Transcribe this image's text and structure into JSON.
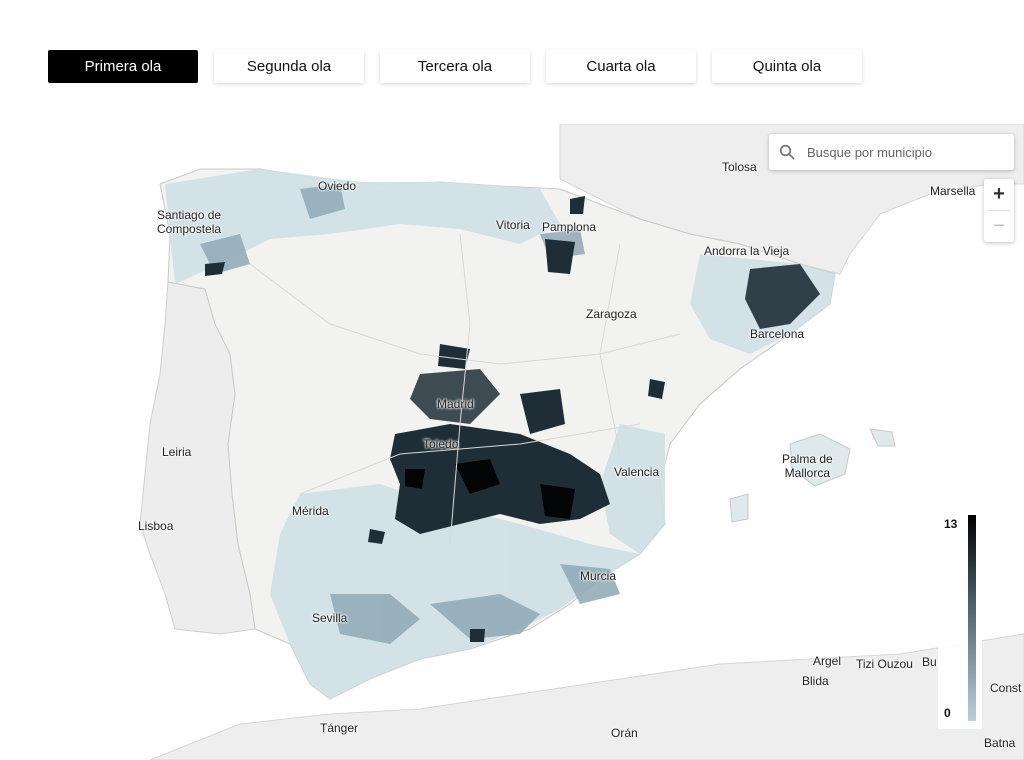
{
  "tabs": [
    {
      "label": "Primera ola",
      "active": true
    },
    {
      "label": "Segunda ola",
      "active": false
    },
    {
      "label": "Tercera ola",
      "active": false
    },
    {
      "label": "Cuarta ola",
      "active": false
    },
    {
      "label": "Quinta ola",
      "active": false
    }
  ],
  "search": {
    "placeholder": "Busque por municipio"
  },
  "zoom": {
    "in_label": "+",
    "out_label": "−"
  },
  "legend": {
    "max": "13",
    "min": "0",
    "color_high": "#000000",
    "color_low": "#b7d1da"
  },
  "places": {
    "oviedo": "Oviedo",
    "santiago": "Santiago de\nCompostela",
    "vitoria": "Vitoria",
    "pamplona": "Pamplona",
    "tolosa": "Tolosa",
    "marsella": "Marsella",
    "andorra": "Andorra la Vieja",
    "zaragoza": "Zaragoza",
    "barcelona": "Barcelona",
    "madrid": "Madrid",
    "toledo": "Toledo",
    "leiria": "Leiria",
    "valencia": "Valencia",
    "palma": "Palma de\nMallorca",
    "lisboa": "Lisboa",
    "merida": "Mérida",
    "murcia": "Murcia",
    "sevilla": "Sevilla",
    "argel": "Argel",
    "tizi": "Tizi Ouzou",
    "bu": "Bu",
    "blida": "Blida",
    "const": "Const",
    "tanger": "Tánger",
    "oran": "Orán",
    "batna": "Batna"
  }
}
